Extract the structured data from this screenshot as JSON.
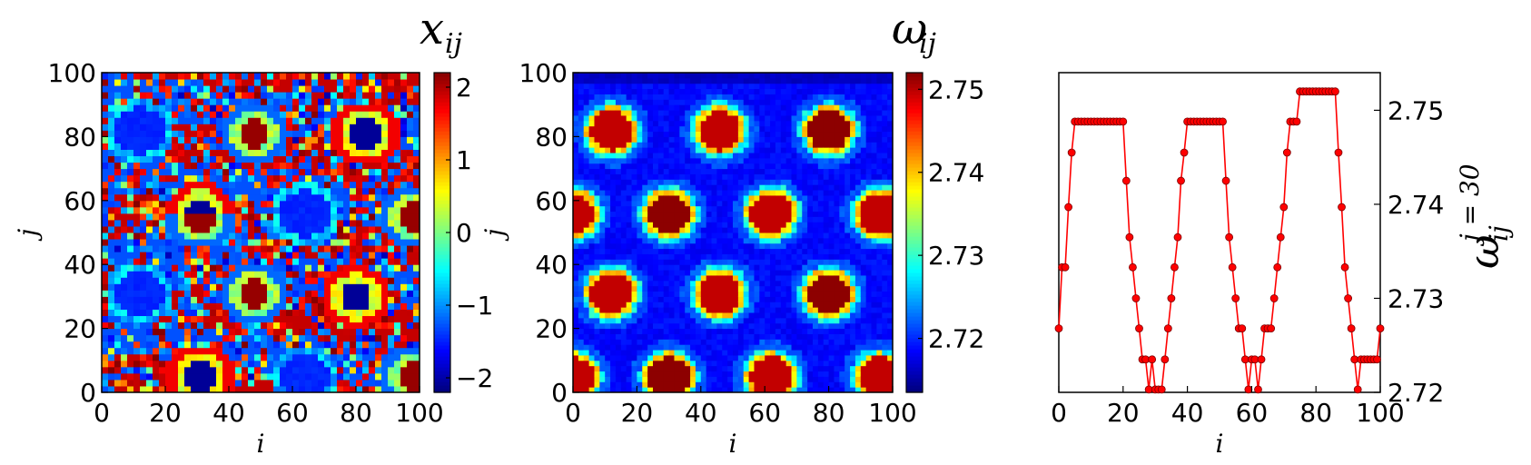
{
  "chart_data": [
    {
      "type": "heatmap",
      "id": "x",
      "title": "x",
      "title_subscript": "ij",
      "xlabel": "i",
      "ylabel": "j",
      "xlim": [
        0,
        100
      ],
      "ylim": [
        0,
        100
      ],
      "xticks": [
        "0",
        "20",
        "40",
        "60",
        "80",
        "100"
      ],
      "yticks": [
        "0",
        "20",
        "40",
        "60",
        "80",
        "100"
      ],
      "colorbar": {
        "range": [
          -2.2,
          2.2
        ],
        "ticks": [
          2,
          1,
          0,
          -1,
          -2
        ],
        "tick_labels": [
          "2",
          "1",
          "0",
          "−1",
          "−2"
        ]
      },
      "hot_spots": [
        [
          48,
          81
        ],
        [
          31,
          55
        ],
        [
          48,
          31
        ],
        [
          98,
          55
        ],
        [
          98,
          5
        ]
      ],
      "cold_spots": [
        [
          83,
          81
        ],
        [
          31,
          56
        ],
        [
          80,
          30
        ],
        [
          31,
          5
        ]
      ],
      "quiet_spots": [
        [
          12,
          82
        ],
        [
          12,
          31
        ],
        [
          64,
          56
        ],
        [
          64,
          5
        ]
      ]
    },
    {
      "type": "heatmap",
      "id": "omega",
      "title": "ω",
      "title_subscript": "ij",
      "xlabel": "i",
      "ylabel": "j",
      "xlim": [
        0,
        100
      ],
      "ylim": [
        0,
        100
      ],
      "xticks": [
        "0",
        "20",
        "40",
        "60",
        "80",
        "100"
      ],
      "yticks": [
        "0",
        "20",
        "40",
        "60",
        "80",
        "100"
      ],
      "colorbar": {
        "range": [
          2.7135,
          2.752
        ],
        "ticks": [
          2.75,
          2.74,
          2.73,
          2.72
        ],
        "tick_labels": [
          "2.75",
          "2.74",
          "2.73",
          "2.72"
        ]
      },
      "base": 2.7185,
      "hot_spots": [
        [
          12,
          82,
          2.7495
        ],
        [
          46,
          82,
          2.7495
        ],
        [
          80,
          82,
          2.7515
        ],
        [
          0,
          56,
          2.7495
        ],
        [
          30,
          56,
          2.7515
        ],
        [
          62,
          56,
          2.7495
        ],
        [
          96,
          56,
          2.7495
        ],
        [
          12,
          31,
          2.7495
        ],
        [
          46,
          31,
          2.7495
        ],
        [
          80,
          31,
          2.7515
        ],
        [
          0,
          5,
          2.7495
        ],
        [
          30,
          5,
          2.7515
        ],
        [
          62,
          5,
          2.7495
        ],
        [
          96,
          5,
          2.7495
        ]
      ]
    },
    {
      "type": "line",
      "id": "omega-slice",
      "xlabel": "i",
      "ylabel": "ω",
      "ylabel_sub": "ij",
      "ylabel_sup": "j = 30",
      "xlim": [
        0,
        100
      ],
      "ylim": [
        2.72,
        2.754
      ],
      "xticks": [
        "0",
        "20",
        "40",
        "60",
        "80",
        "100"
      ],
      "yticks": [
        2.75,
        2.74,
        2.73,
        2.72
      ],
      "ytick_labels": [
        "2.75",
        "2.74",
        "2.73",
        "2.72"
      ],
      "color": "#ff0000",
      "x": [
        0,
        1,
        2,
        3,
        4,
        5,
        6,
        7,
        8,
        9,
        10,
        11,
        12,
        13,
        14,
        15,
        16,
        17,
        18,
        19,
        20,
        21,
        22,
        23,
        24,
        25,
        26,
        27,
        28,
        29,
        30,
        31,
        32,
        33,
        34,
        35,
        36,
        37,
        38,
        39,
        40,
        41,
        42,
        43,
        44,
        45,
        46,
        47,
        48,
        49,
        50,
        51,
        52,
        53,
        54,
        55,
        56,
        57,
        58,
        59,
        60,
        61,
        62,
        63,
        64,
        65,
        66,
        67,
        68,
        69,
        70,
        71,
        72,
        73,
        74,
        75,
        76,
        77,
        78,
        79,
        80,
        81,
        82,
        83,
        84,
        85,
        86,
        87,
        88,
        89,
        90,
        91,
        92,
        93,
        94,
        95,
        96,
        97,
        98,
        99,
        100
      ],
      "y": [
        2.7268,
        2.7333,
        2.7333,
        2.7397,
        2.7455,
        2.7488,
        2.7488,
        2.7488,
        2.7488,
        2.7488,
        2.7488,
        2.7488,
        2.7488,
        2.7488,
        2.7488,
        2.7488,
        2.7488,
        2.7488,
        2.7488,
        2.7488,
        2.7488,
        2.7425,
        2.7365,
        2.7333,
        2.73,
        2.7268,
        2.7235,
        2.7235,
        2.7203,
        2.7235,
        2.7203,
        2.7203,
        2.7203,
        2.7235,
        2.7268,
        2.73,
        2.7333,
        2.7365,
        2.7425,
        2.7455,
        2.7488,
        2.7488,
        2.7488,
        2.7488,
        2.7488,
        2.7488,
        2.7488,
        2.7488,
        2.7488,
        2.7488,
        2.7488,
        2.7488,
        2.7425,
        2.7365,
        2.7333,
        2.73,
        2.7268,
        2.7268,
        2.7235,
        2.7203,
        2.7235,
        2.7235,
        2.7203,
        2.7235,
        2.7268,
        2.7268,
        2.7268,
        2.73,
        2.7333,
        2.7365,
        2.7397,
        2.7455,
        2.7488,
        2.7488,
        2.7488,
        2.752,
        2.752,
        2.752,
        2.752,
        2.752,
        2.752,
        2.752,
        2.752,
        2.752,
        2.752,
        2.752,
        2.752,
        2.7455,
        2.7397,
        2.7333,
        2.73,
        2.7268,
        2.7235,
        2.7203,
        2.7235,
        2.7235,
        2.7235,
        2.7235,
        2.7235,
        2.7235,
        2.7268
      ]
    }
  ]
}
